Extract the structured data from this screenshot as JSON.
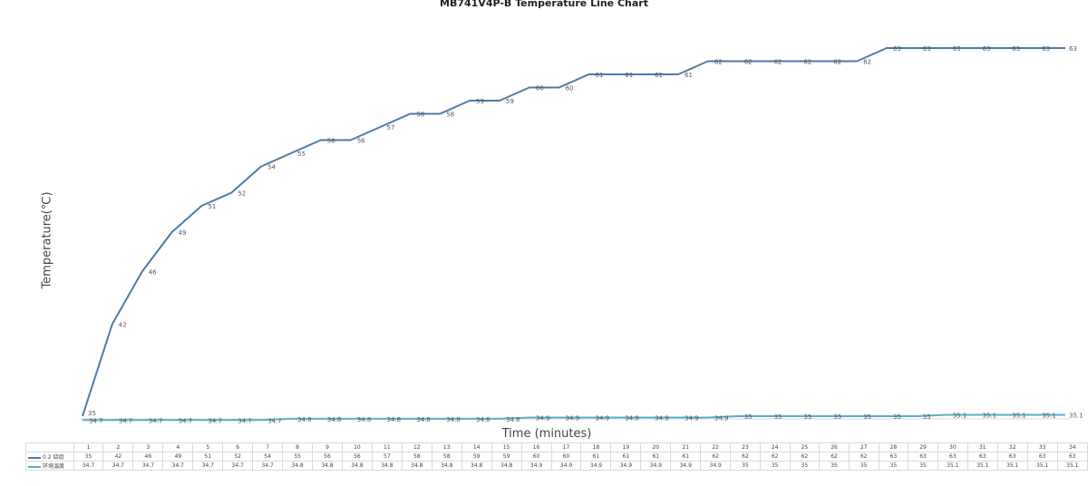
{
  "chart_data": {
    "type": "line",
    "title": "MB741V4P-B Temperature Line Chart",
    "xlabel": "Time (minutes)",
    "ylabel": "Temperature(℃)",
    "ylim": [
      35,
      63
    ],
    "grid": false,
    "legend": "table-bottom",
    "categories": [
      "1",
      "2",
      "3",
      "4",
      "5",
      "6",
      "7",
      "8",
      "9",
      "10",
      "11",
      "12",
      "13",
      "14",
      "15",
      "16",
      "17",
      "18",
      "19",
      "20",
      "21",
      "22",
      "23",
      "24",
      "25",
      "26",
      "27",
      "28",
      "29",
      "30",
      "31",
      "32",
      "33",
      "34"
    ],
    "series": [
      {
        "name": "0.2 绕组",
        "color": "#4f7aa8",
        "values": [
          35,
          42,
          46,
          49,
          51,
          52,
          54,
          55,
          56,
          56,
          57,
          58,
          58,
          59,
          59,
          60,
          60,
          61,
          61,
          61,
          61,
          62,
          62,
          62,
          62,
          62,
          62,
          63,
          63,
          63,
          63,
          63,
          63,
          63
        ],
        "labels": [
          "35",
          "42",
          "46",
          "49",
          "51",
          "52",
          "54",
          "55",
          "56",
          "56",
          "57",
          "58",
          "58",
          "59",
          "59",
          "60",
          "60",
          "61",
          "61",
          "61",
          "61",
          "62",
          "62",
          "62",
          "62",
          "62",
          "62",
          "63",
          "63",
          "63",
          "63",
          "63",
          "63",
          "63"
        ]
      },
      {
        "name": "环境温度",
        "color": "#5aaec8",
        "values": [
          34.7,
          34.7,
          34.7,
          34.7,
          34.7,
          34.7,
          34.7,
          34.8,
          34.8,
          34.8,
          34.8,
          34.8,
          34.8,
          34.8,
          34.8,
          34.9,
          34.9,
          34.9,
          34.9,
          34.9,
          34.9,
          34.9,
          35,
          35,
          35,
          35,
          35,
          35,
          35,
          35.1,
          35.1,
          35.1,
          35.1,
          35.1
        ],
        "labels": [
          "34.7",
          "34.7",
          "34.7",
          "34.7",
          "34.7",
          "34.7",
          "34.7",
          "34.8",
          "34.8",
          "34.8",
          "34.8",
          "34.8",
          "34.8",
          "34.8",
          "34.8",
          "34.9",
          "34.9",
          "34.9",
          "34.9",
          "34.9",
          "34.9",
          "34.9",
          "35",
          "35",
          "35",
          "35",
          "35",
          "35",
          "35",
          "35.1",
          "35.1",
          "35.1",
          "35.1",
          "35.1"
        ]
      }
    ]
  }
}
